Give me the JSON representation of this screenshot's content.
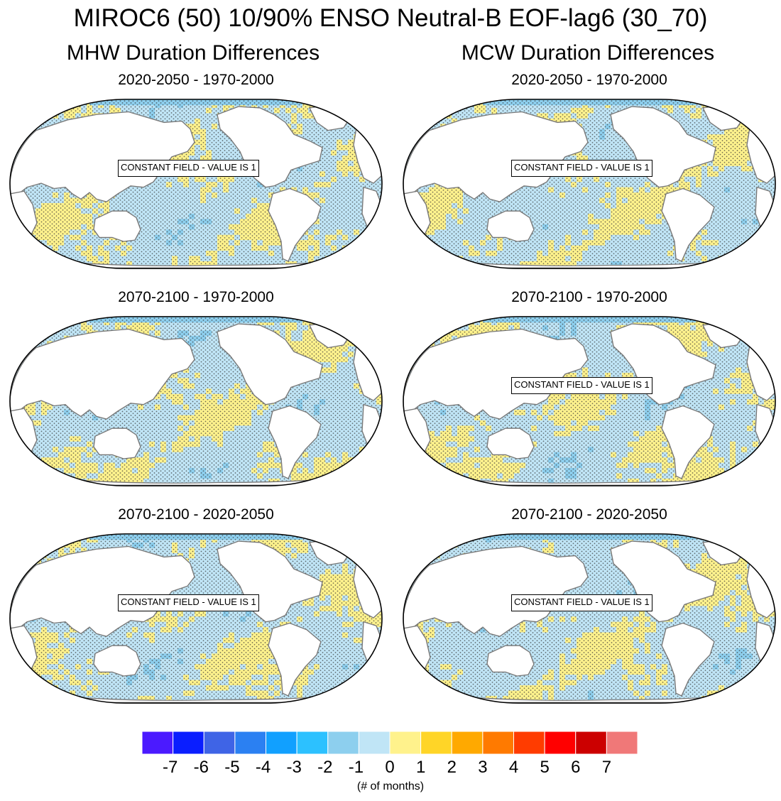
{
  "title": "MIROC6 (50) 10/90% ENSO Neutral-B EOF-lag6 (30_70)",
  "columns": [
    {
      "title": "MHW Duration Differences"
    },
    {
      "title": "MCW Duration Differences"
    }
  ],
  "panels": [
    {
      "title": "2020-2050 - 1970-2000",
      "note": "CONSTANT FIELD - VALUE IS 1"
    },
    {
      "title": "2020-2050 - 1970-2000",
      "note": "CONSTANT FIELD - VALUE IS 1"
    },
    {
      "title": "2070-2100 - 1970-2000",
      "note": ""
    },
    {
      "title": "2070-2100 - 1970-2000",
      "note": "CONSTANT FIELD - VALUE IS 1"
    },
    {
      "title": "2070-2100 - 2020-2050",
      "note": "CONSTANT FIELD - VALUE IS 1"
    },
    {
      "title": "2070-2100 - 2020-2050",
      "note": "CONSTANT FIELD - VALUE IS 1"
    }
  ],
  "chart_data": {
    "type": "heatmap",
    "projection": "Robinson, Pacific-centred",
    "stippling": true,
    "colorbar": {
      "labels": [
        "-7",
        "-6",
        "-5",
        "-4",
        "-3",
        "-2",
        "-1",
        "0",
        "1",
        "2",
        "3",
        "4",
        "5",
        "6",
        "7"
      ],
      "colors": [
        "#4b1aff",
        "#0a1eff",
        "#3f64e6",
        "#2b80f2",
        "#11a0ff",
        "#2cc1ff",
        "#8dcfee",
        "#c0e5f6",
        "#fff28c",
        "#ffd527",
        "#ffa900",
        "#ff7a00",
        "#ff3c00",
        "#ff0000",
        "#cc0000",
        "#f07878"
      ],
      "units": "(# of months)"
    }
  }
}
